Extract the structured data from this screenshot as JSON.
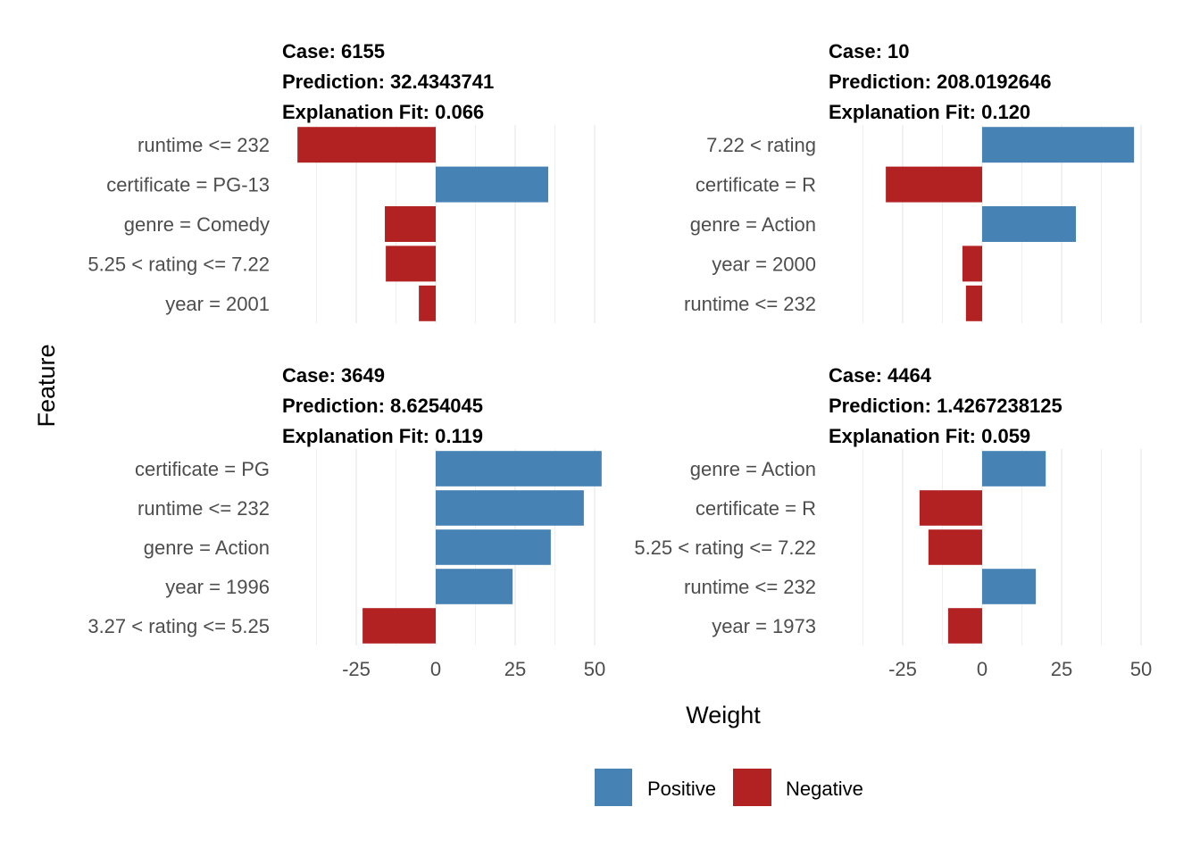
{
  "chart_data": {
    "type": "bar",
    "orientation": "horizontal",
    "xlabel": "Weight",
    "ylabel": "Feature",
    "xlim": [
      -45,
      53
    ],
    "xticks": [
      -25,
      0,
      25,
      50
    ],
    "grid": true,
    "legend": {
      "position": "bottom",
      "entries": [
        {
          "label": "Positive",
          "color": "#4682B4"
        },
        {
          "label": "Negative",
          "color": "#B22222"
        }
      ]
    },
    "panels": [
      {
        "case_label": "Case: 6155",
        "prediction_label": "Prediction: 32.4343741",
        "fit_label": "Explanation Fit: 0.066",
        "features": [
          "runtime <= 232",
          "certificate = PG-13",
          "genre = Comedy",
          "5.25 < rating <= 7.22",
          "year = 2001"
        ],
        "weights": [
          -43.5,
          35.4,
          -16.0,
          -15.7,
          -5.3
        ]
      },
      {
        "case_label": "Case: 10",
        "prediction_label": "Prediction: 208.0192646",
        "fit_label": "Explanation Fit: 0.120",
        "features": [
          "7.22 < rating",
          "certificate = R",
          "genre = Action",
          "year = 2000",
          "runtime <= 232"
        ],
        "weights": [
          47.8,
          -30.3,
          29.5,
          -6.2,
          -5.1
        ]
      },
      {
        "case_label": "Case: 3649",
        "prediction_label": "Prediction: 8.6254045",
        "fit_label": "Explanation Fit: 0.119",
        "features": [
          "certificate = PG",
          "runtime <= 232",
          "genre = Action",
          "year = 1996",
          "3.27 < rating <= 5.25"
        ],
        "weights": [
          52.2,
          46.6,
          36.2,
          24.2,
          -23.0
        ]
      },
      {
        "case_label": "Case: 4464",
        "prediction_label": "Prediction: 1.4267238125",
        "fit_label": "Explanation Fit: 0.059",
        "features": [
          "genre = Action",
          "certificate = R",
          "5.25 < rating <= 7.22",
          "runtime <= 232",
          "year = 1973"
        ],
        "weights": [
          20.0,
          -19.7,
          -16.9,
          16.9,
          -10.7
        ]
      }
    ]
  }
}
